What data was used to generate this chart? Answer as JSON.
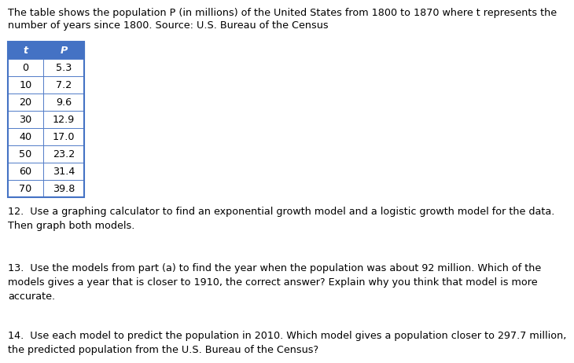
{
  "header_text_line1": "The table shows the population P (in millions) of the United States from 1800 to 1870 where t represents the",
  "header_text_line2": "number of years since 1800. Source: U.S. Bureau of the Census",
  "table_t": [
    0,
    10,
    20,
    30,
    40,
    50,
    60,
    70
  ],
  "table_p": [
    "5.3",
    "7.2",
    "9.6",
    "12.9",
    "17.0",
    "23.2",
    "31.4",
    "39.8"
  ],
  "col_headers": [
    "t",
    "P"
  ],
  "q12_text": "12.  Use a graphing calculator to find an exponential growth model and a logistic growth model for the data.\nThen graph both models.",
  "q13_text": "13.  Use the models from part (a) to find the year when the population was about 92 million. Which of the\nmodels gives a year that is closer to 1910, the correct answer? Explain why you think that model is more\naccurate.",
  "q14_text": "14.  Use each model to predict the population in 2010. Which model gives a population closer to 297.7 million,\nthe predicted population from the U.S. Bureau of the Census?",
  "bg_color": "#ffffff",
  "text_color": "#000000",
  "table_header_bg": "#4472c4",
  "table_header_text": "#ffffff",
  "table_border_color": "#4472c4",
  "table_row_bg": "#ffffff",
  "header_fontsize": 9.2,
  "source_fontsize": 8.2,
  "body_fontsize": 9.2,
  "table_fontsize": 9.2
}
